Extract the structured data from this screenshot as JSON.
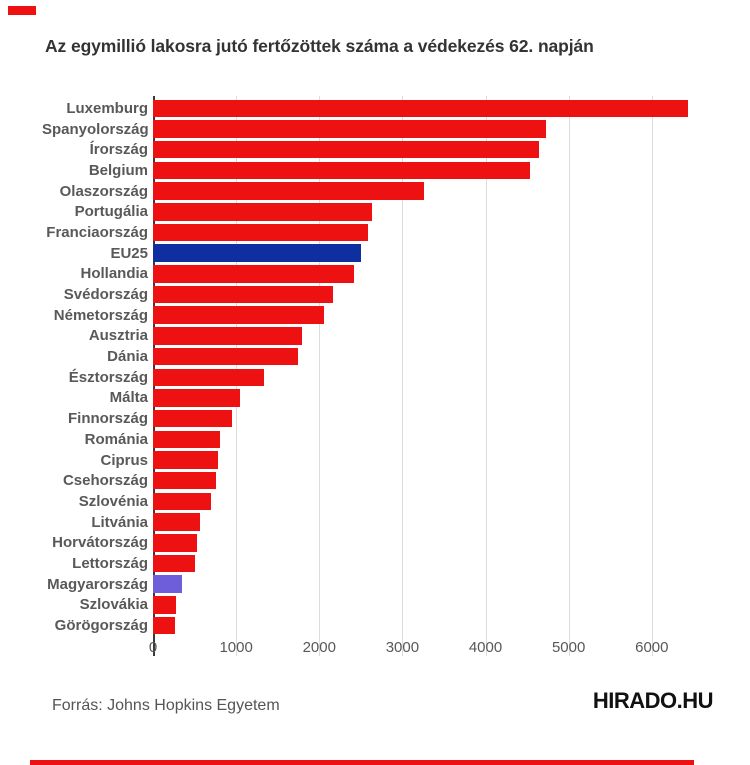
{
  "footer": {
    "source": "Forrás: Johns Hopkins Egyetem",
    "logo": "HIRADO.HU"
  },
  "colors": {
    "bars": {
      "red": "#ee1111",
      "blue": "#0e2f9f",
      "purple": "#6e5ed9"
    },
    "axis": "#3a3a3a",
    "grid": "#dcdcdc",
    "label": "#595959",
    "title": "#333333",
    "accent_strip": "#ee1111"
  },
  "chart_data": {
    "type": "bar",
    "orientation": "horizontal",
    "title": "Az egymillió lakosra jutó fertőzöttek száma a védekezés 62. napján",
    "categories": [
      "Luxemburg",
      "Spanyolország",
      "Írország",
      "Belgium",
      "Olaszország",
      "Portugália",
      "Franciaország",
      "EU25",
      "Hollandia",
      "Svédország",
      "Németország",
      "Ausztria",
      "Dánia",
      "Észtország",
      "Málta",
      "Finnország",
      "Románia",
      "Ciprus",
      "Csehország",
      "Szlovénia",
      "Litvánia",
      "Horvátország",
      "Lettország",
      "Magyarország",
      "Szlovákia",
      "Görögország"
    ],
    "values": [
      6440,
      4730,
      4640,
      4530,
      3260,
      2640,
      2590,
      2500,
      2420,
      2160,
      2060,
      1790,
      1740,
      1340,
      1050,
      950,
      810,
      780,
      760,
      700,
      560,
      530,
      500,
      350,
      280,
      270
    ],
    "bar_colors": [
      "red",
      "red",
      "red",
      "red",
      "red",
      "red",
      "red",
      "blue",
      "red",
      "red",
      "red",
      "red",
      "red",
      "red",
      "red",
      "red",
      "red",
      "red",
      "red",
      "red",
      "red",
      "red",
      "red",
      "purple",
      "red",
      "red"
    ],
    "highlights": {
      "EU25": "blue",
      "Magyarország": "purple"
    },
    "xticks": [
      0,
      1000,
      2000,
      3000,
      4000,
      5000,
      6000
    ],
    "xlim": [
      0,
      6700
    ],
    "xlabel": "",
    "ylabel": "",
    "grid": true,
    "legend": false
  }
}
